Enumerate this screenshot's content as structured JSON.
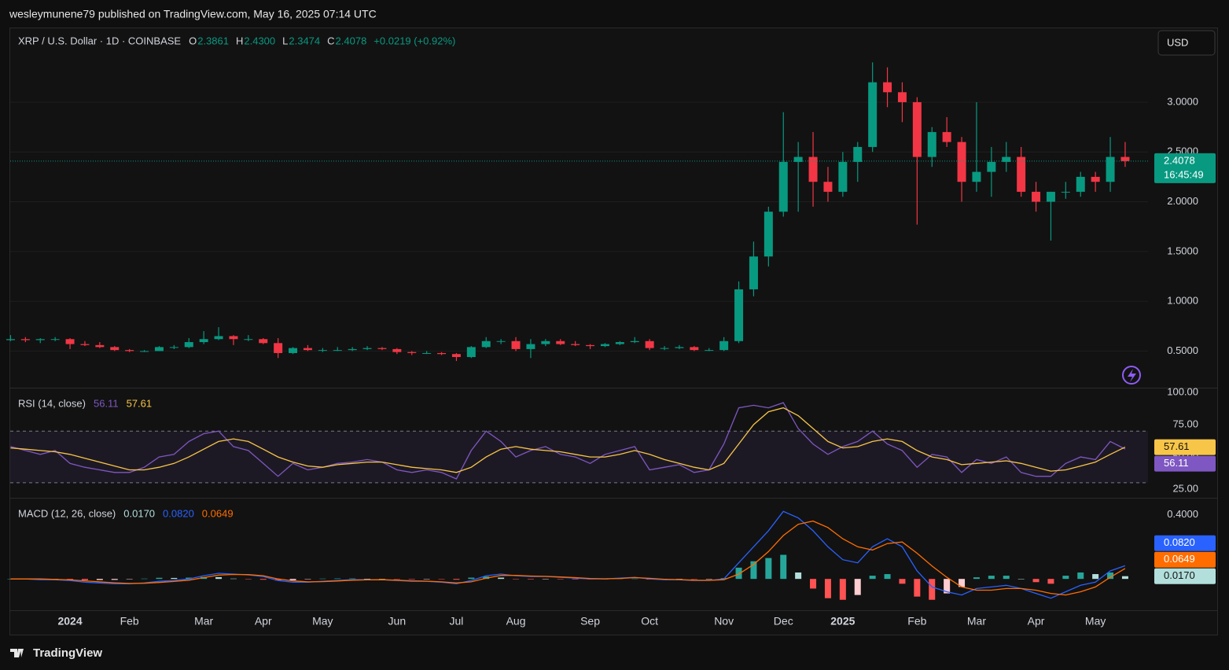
{
  "header": {
    "published": "wesleymunene79 published on TradingView.com, May 16, 2025 07:14 UTC",
    "symbol": "XRP / U.S. Dollar · 1D · COINBASE",
    "ohlc": [
      {
        "label": "O",
        "value": "2.3861"
      },
      {
        "label": "H",
        "value": "2.4300"
      },
      {
        "label": "L",
        "value": "2.3474"
      },
      {
        "label": "C",
        "value": "2.4078"
      }
    ],
    "change": "+0.0219 (+0.92%)",
    "currency": "USD"
  },
  "footer": "TradingView",
  "chart_data": [
    {
      "type": "candlestick",
      "up_color": "#089981",
      "down_color": "#f23645",
      "open": [
        0.61,
        0.62,
        0.61,
        0.62,
        0.62,
        0.57,
        0.56,
        0.54,
        0.51,
        0.5,
        0.5,
        0.54,
        0.54,
        0.59,
        0.62,
        0.65,
        0.62,
        0.62,
        0.58,
        0.48,
        0.53,
        0.51,
        0.51,
        0.51,
        0.52,
        0.53,
        0.52,
        0.49,
        0.48,
        0.48,
        0.47,
        0.44,
        0.54,
        0.6,
        0.6,
        0.52,
        0.57,
        0.6,
        0.57,
        0.56,
        0.55,
        0.57,
        0.59,
        0.6,
        0.53,
        0.53,
        0.54,
        0.51,
        0.51,
        0.6,
        1.12,
        1.45,
        1.9,
        2.4,
        2.45,
        2.2,
        2.1,
        2.4,
        2.55,
        3.2,
        3.1,
        3.0,
        2.45,
        2.7,
        2.6,
        2.2,
        2.3,
        2.4,
        2.45,
        2.1,
        2.0,
        2.1,
        2.1,
        2.25,
        2.2,
        2.45
      ],
      "high": [
        0.66,
        0.64,
        0.63,
        0.64,
        0.63,
        0.6,
        0.59,
        0.55,
        0.52,
        0.51,
        0.55,
        0.56,
        0.63,
        0.7,
        0.74,
        0.66,
        0.66,
        0.63,
        0.63,
        0.54,
        0.56,
        0.53,
        0.54,
        0.54,
        0.55,
        0.54,
        0.53,
        0.5,
        0.5,
        0.49,
        0.48,
        0.55,
        0.64,
        0.62,
        0.64,
        0.62,
        0.62,
        0.62,
        0.6,
        0.57,
        0.58,
        0.6,
        0.64,
        0.62,
        0.55,
        0.56,
        0.55,
        0.53,
        0.64,
        1.2,
        1.6,
        1.95,
        2.9,
        2.6,
        2.7,
        2.35,
        2.5,
        2.6,
        3.4,
        3.35,
        3.2,
        3.05,
        2.75,
        2.85,
        2.65,
        3.0,
        2.55,
        2.6,
        2.55,
        2.2,
        2.1,
        2.2,
        2.3,
        2.3,
        2.65,
        2.6
      ],
      "low": [
        0.6,
        0.59,
        0.58,
        0.6,
        0.52,
        0.55,
        0.53,
        0.5,
        0.49,
        0.49,
        0.5,
        0.52,
        0.53,
        0.57,
        0.61,
        0.56,
        0.6,
        0.57,
        0.43,
        0.47,
        0.5,
        0.49,
        0.5,
        0.5,
        0.51,
        0.51,
        0.47,
        0.46,
        0.47,
        0.46,
        0.4,
        0.43,
        0.53,
        0.57,
        0.5,
        0.43,
        0.55,
        0.56,
        0.55,
        0.52,
        0.54,
        0.56,
        0.58,
        0.51,
        0.51,
        0.52,
        0.5,
        0.5,
        0.5,
        0.58,
        1.05,
        1.35,
        1.85,
        1.9,
        1.95,
        2.0,
        2.05,
        2.2,
        2.5,
        2.95,
        2.8,
        1.77,
        2.35,
        2.55,
        2.0,
        2.1,
        2.05,
        2.3,
        2.05,
        1.9,
        1.61,
        2.03,
        2.05,
        2.1,
        2.1,
        2.35
      ],
      "close": [
        0.62,
        0.61,
        0.62,
        0.62,
        0.57,
        0.56,
        0.54,
        0.51,
        0.5,
        0.5,
        0.54,
        0.54,
        0.59,
        0.62,
        0.65,
        0.62,
        0.62,
        0.58,
        0.48,
        0.53,
        0.51,
        0.51,
        0.51,
        0.52,
        0.53,
        0.52,
        0.49,
        0.48,
        0.48,
        0.47,
        0.44,
        0.54,
        0.6,
        0.6,
        0.52,
        0.57,
        0.6,
        0.57,
        0.56,
        0.55,
        0.57,
        0.59,
        0.6,
        0.53,
        0.53,
        0.54,
        0.51,
        0.51,
        0.6,
        1.12,
        1.45,
        1.9,
        2.4,
        2.45,
        2.2,
        2.1,
        2.4,
        2.55,
        3.2,
        3.1,
        3.0,
        2.45,
        2.7,
        2.6,
        2.2,
        2.3,
        2.4,
        2.45,
        2.1,
        2.0,
        2.1,
        2.1,
        2.25,
        2.2,
        2.45,
        2.4078
      ],
      "last_price": 2.4078,
      "countdown": "16:45:49",
      "ylim": [
        0.14,
        3.75
      ],
      "yticks": [
        {
          "value": 0.5,
          "label": "0.5000"
        },
        {
          "value": 1.0,
          "label": "1.0000"
        },
        {
          "value": 1.5,
          "label": "1.5000"
        },
        {
          "value": 2.0,
          "label": "2.0000"
        },
        {
          "value": 2.5,
          "label": "2.5000"
        },
        {
          "value": 3.0,
          "label": "3.0000"
        }
      ],
      "grid": true
    },
    {
      "type": "line",
      "title": "RSI (14, close)",
      "series": [
        {
          "color": "#7e57c2",
          "values": [
            58,
            55,
            52,
            55,
            45,
            42,
            40,
            38,
            38,
            42,
            50,
            52,
            62,
            68,
            70,
            58,
            55,
            45,
            35,
            45,
            40,
            42,
            45,
            46,
            48,
            46,
            40,
            38,
            40,
            38,
            33,
            55,
            70,
            62,
            50,
            55,
            58,
            52,
            50,
            45,
            52,
            55,
            58,
            40,
            42,
            44,
            38,
            40,
            60,
            88,
            90,
            88,
            92,
            72,
            60,
            52,
            58,
            62,
            70,
            60,
            55,
            42,
            52,
            50,
            38,
            48,
            45,
            50,
            38,
            35,
            35,
            45,
            50,
            48,
            62,
            56.11
          ]
        },
        {
          "color": "#f7c548",
          "values": [
            57,
            56,
            55,
            54,
            52,
            49,
            46,
            43,
            40,
            40,
            42,
            45,
            50,
            56,
            62,
            64,
            62,
            56,
            50,
            46,
            43,
            42,
            44,
            45,
            46,
            46,
            44,
            42,
            41,
            40,
            38,
            42,
            50,
            56,
            58,
            56,
            55,
            54,
            52,
            50,
            50,
            52,
            55,
            52,
            48,
            45,
            42,
            40,
            45,
            60,
            75,
            85,
            88,
            82,
            72,
            62,
            57,
            58,
            62,
            64,
            62,
            55,
            50,
            48,
            44,
            45,
            46,
            47,
            45,
            42,
            39,
            40,
            43,
            46,
            52,
            57.61
          ]
        }
      ],
      "bands": [
        30,
        70
      ],
      "ylim": [
        19,
        103
      ],
      "yticks": [
        {
          "value": 25,
          "label": "25.00"
        },
        {
          "value": 50,
          "label": "50.00"
        },
        {
          "value": 75,
          "label": "75.00"
        },
        {
          "value": 100,
          "label": "100.00"
        }
      ]
    },
    {
      "type": "macd",
      "title": "MACD (12, 26, close)",
      "histogram": {
        "last_label": "0.0170",
        "colors": [
          "#26a69a",
          "#b2dfdb",
          "#ff5252",
          "#ffcdd2"
        ],
        "values": [
          0,
          0,
          -0.005,
          -0.002,
          -0.004,
          -0.008,
          -0.007,
          -0.006,
          -0.002,
          0.002,
          0.007,
          0.006,
          0.008,
          0.012,
          0.011,
          0.002,
          -0.002,
          -0.005,
          -0.01,
          -0.008,
          -0.002,
          0.002,
          0.003,
          0.003,
          0.001,
          0,
          -0.002,
          -0.003,
          -0.001,
          -0.002,
          -0.005,
          0.008,
          0.015,
          0.008,
          -0.002,
          -0.003,
          -0.001,
          -0.002,
          -0.003,
          -0.003,
          -0.001,
          0.002,
          0.002,
          -0.004,
          -0.003,
          -0.001,
          -0.002,
          -0.001,
          0.005,
          0.07,
          0.11,
          0.13,
          0.15,
          0.04,
          -0.06,
          -0.12,
          -0.13,
          -0.1,
          0.02,
          0.03,
          -0.03,
          -0.11,
          -0.13,
          -0.09,
          -0.05,
          0.01,
          0.02,
          0.02,
          0,
          -0.02,
          -0.03,
          0.02,
          0.04,
          0.03,
          0.04,
          0.017
        ]
      },
      "series": [
        {
          "color": "#2962ff",
          "last_label": "0.0820",
          "values": [
            0,
            0,
            -0.005,
            -0.005,
            -0.01,
            -0.02,
            -0.025,
            -0.03,
            -0.03,
            -0.025,
            -0.015,
            -0.01,
            0,
            0.02,
            0.035,
            0.03,
            0.025,
            0.015,
            -0.01,
            -0.02,
            -0.02,
            -0.015,
            -0.01,
            -0.005,
            -0.005,
            -0.005,
            -0.01,
            -0.015,
            -0.015,
            -0.02,
            -0.03,
            -0.01,
            0.02,
            0.03,
            0.02,
            0.015,
            0.015,
            0.01,
            0.005,
            0,
            0,
            0.005,
            0.01,
            0,
            -0.005,
            -0.005,
            -0.01,
            -0.01,
            0,
            0.1,
            0.2,
            0.3,
            0.42,
            0.38,
            0.3,
            0.2,
            0.12,
            0.1,
            0.2,
            0.25,
            0.2,
            0.05,
            -0.05,
            -0.08,
            -0.1,
            -0.06,
            -0.05,
            -0.04,
            -0.06,
            -0.09,
            -0.12,
            -0.08,
            -0.04,
            -0.02,
            0.05,
            0.082
          ]
        },
        {
          "color": "#ff6d00",
          "last_label": "0.0649",
          "values": [
            0,
            0,
            0,
            -0.003,
            -0.006,
            -0.012,
            -0.018,
            -0.024,
            -0.028,
            -0.027,
            -0.022,
            -0.016,
            -0.008,
            0.008,
            0.024,
            0.028,
            0.027,
            0.02,
            0,
            -0.012,
            -0.018,
            -0.017,
            -0.013,
            -0.008,
            -0.006,
            -0.005,
            -0.008,
            -0.012,
            -0.014,
            -0.018,
            -0.025,
            -0.018,
            0.005,
            0.022,
            0.022,
            0.018,
            0.016,
            0.012,
            0.008,
            0.003,
            0.001,
            0.003,
            0.008,
            0.004,
            -0.002,
            -0.004,
            -0.008,
            -0.009,
            -0.005,
            0.03,
            0.09,
            0.17,
            0.27,
            0.34,
            0.36,
            0.32,
            0.25,
            0.2,
            0.18,
            0.22,
            0.23,
            0.16,
            0.08,
            0.01,
            -0.05,
            -0.07,
            -0.07,
            -0.06,
            -0.06,
            -0.07,
            -0.09,
            -0.1,
            -0.08,
            -0.05,
            0.01,
            0.0649
          ]
        }
      ],
      "categories": [
        null,
        null,
        null,
        null,
        "2024",
        null,
        null,
        null,
        "Feb",
        null,
        null,
        null,
        null,
        "Mar",
        null,
        null,
        null,
        "Apr",
        null,
        null,
        null,
        "May",
        null,
        null,
        null,
        null,
        "Jun",
        null,
        null,
        null,
        "Jul",
        null,
        null,
        null,
        "Aug",
        null,
        null,
        null,
        null,
        "Sep",
        null,
        null,
        null,
        "Oct",
        null,
        null,
        null,
        null,
        "Nov",
        null,
        null,
        null,
        "Dec",
        null,
        null,
        null,
        "2025",
        null,
        null,
        null,
        null,
        "Feb",
        null,
        null,
        null,
        "Mar",
        null,
        null,
        null,
        "Apr",
        null,
        null,
        null,
        "May",
        null,
        null
      ],
      "ylim": [
        -0.19,
        0.5
      ],
      "yticks": [
        {
          "value": 0.4,
          "label": "0.4000"
        }
      ]
    }
  ]
}
